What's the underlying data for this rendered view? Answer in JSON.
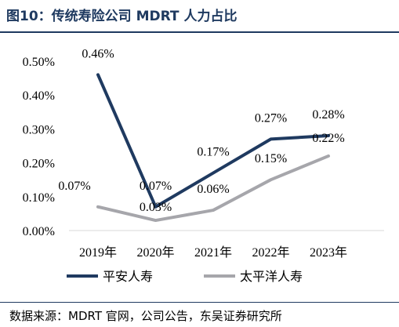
{
  "figure_title": "图10：传统寿险公司 MDRT 人力占比",
  "source_note": "数据来源：MDRT 官网，公司公告，东吴证券研究所",
  "chart_data": {
    "type": "line",
    "title": "",
    "xlabel": "",
    "ylabel": "",
    "categories": [
      "2019年",
      "2020年",
      "2021年",
      "2022年",
      "2023年"
    ],
    "ylim": [
      0,
      0.5
    ],
    "yticks": [
      0,
      0.1,
      0.2,
      0.3,
      0.4,
      0.5
    ],
    "ytick_labels": [
      "0.00%",
      "0.10%",
      "0.20%",
      "0.30%",
      "0.40%",
      "0.50%"
    ],
    "grid": false,
    "legend_position": "bottom",
    "series": [
      {
        "name": "平安人寿",
        "color": "#1f3a60",
        "values": [
          0.46,
          0.07,
          0.17,
          0.27,
          0.28
        ],
        "labels": [
          "0.46%",
          "0.07%",
          "0.17%",
          "0.27%",
          "0.28%"
        ]
      },
      {
        "name": "太平洋人寿",
        "color": "#a6a6ab",
        "values": [
          0.07,
          0.03,
          0.06,
          0.15,
          0.22
        ],
        "labels": [
          "0.07%",
          "0.03%",
          "0.06%",
          "0.15%",
          "0.22%"
        ]
      }
    ]
  }
}
